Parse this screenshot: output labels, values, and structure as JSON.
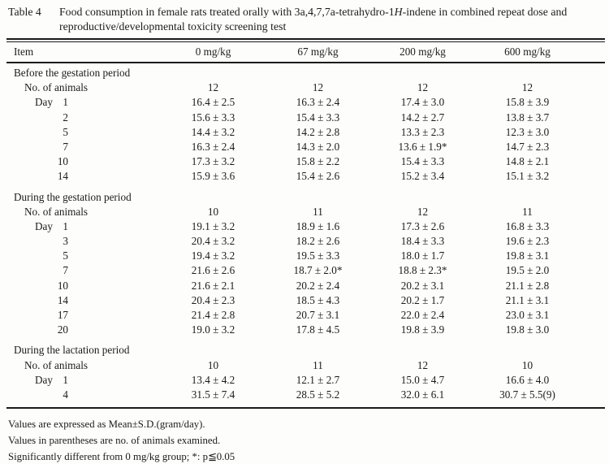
{
  "title": {
    "label": "Table 4",
    "caption_pre": "Food consumption in female rats treated orally with 3a,4,7,7a-tetrahydro-1",
    "caption_italic": "H",
    "caption_post": "-indene in combined repeat dose and reproductive/developmental toxicity screening test"
  },
  "table": {
    "item_header": "Item",
    "dose_headers": [
      "0 mg/kg",
      "67 mg/kg",
      "200 mg/kg",
      "600 mg/kg"
    ],
    "animals_label": "No. of animals",
    "day_label": "Day",
    "sections": [
      {
        "label": "Before the gestation period",
        "animals": [
          "12",
          "12",
          "12",
          "12"
        ],
        "rows": [
          {
            "day": "1",
            "values": [
              "16.4 ± 2.5",
              "16.3 ± 2.4",
              "17.4 ± 3.0",
              "15.8 ± 3.9"
            ]
          },
          {
            "day": "2",
            "values": [
              "15.6 ± 3.3",
              "15.4 ± 3.3",
              "14.2 ± 2.7",
              "13.8 ± 3.7"
            ]
          },
          {
            "day": "5",
            "values": [
              "14.4 ± 3.2",
              "14.2 ± 2.8",
              "13.3 ± 2.3",
              "12.3 ± 3.0"
            ]
          },
          {
            "day": "7",
            "values": [
              "16.3 ± 2.4",
              "14.3 ± 2.0",
              "13.6 ± 1.9*",
              "14.7 ± 2.3"
            ]
          },
          {
            "day": "10",
            "values": [
              "17.3 ± 3.2",
              "15.8 ± 2.2",
              "15.4 ± 3.3",
              "14.8 ± 2.1"
            ]
          },
          {
            "day": "14",
            "values": [
              "15.9 ± 3.6",
              "15.4 ± 2.6",
              "15.2 ± 3.4",
              "15.1 ± 3.2"
            ]
          }
        ]
      },
      {
        "label": "During the gestation period",
        "animals": [
          "10",
          "11",
          "12",
          "11"
        ],
        "rows": [
          {
            "day": "1",
            "values": [
              "19.1 ± 3.2",
              "18.9 ± 1.6",
              "17.3 ± 2.6",
              "16.8 ± 3.3"
            ]
          },
          {
            "day": "3",
            "values": [
              "20.4 ± 3.2",
              "18.2 ± 2.6",
              "18.4 ± 3.3",
              "19.6 ± 2.3"
            ]
          },
          {
            "day": "5",
            "values": [
              "19.4 ± 3.2",
              "19.5 ± 3.3",
              "18.0 ± 1.7",
              "19.8 ± 3.1"
            ]
          },
          {
            "day": "7",
            "values": [
              "21.6 ± 2.6",
              "18.7 ± 2.0*",
              "18.8 ± 2.3*",
              "19.5 ± 2.0"
            ]
          },
          {
            "day": "10",
            "values": [
              "21.6 ± 2.1",
              "20.2 ± 2.4",
              "20.2 ± 3.1",
              "21.1 ± 2.8"
            ]
          },
          {
            "day": "14",
            "values": [
              "20.4 ± 2.3",
              "18.5 ± 4.3",
              "20.2 ± 1.7",
              "21.1 ± 3.1"
            ]
          },
          {
            "day": "17",
            "values": [
              "21.4 ± 2.8",
              "20.7 ± 3.1",
              "22.0 ± 2.4",
              "23.0 ± 3.1"
            ]
          },
          {
            "day": "20",
            "values": [
              "19.0 ± 3.2",
              "17.8 ± 4.5",
              "19.8 ± 3.9",
              "19.8 ± 3.0"
            ]
          }
        ]
      },
      {
        "label": "During the lactation period",
        "animals": [
          "10",
          "11",
          "12",
          "10"
        ],
        "rows": [
          {
            "day": "1",
            "values": [
              "13.4 ± 4.2",
              "12.1 ± 2.7",
              "15.0 ± 4.7",
              "16.6 ± 4.0"
            ]
          },
          {
            "day": "4",
            "values": [
              "31.5 ± 7.4",
              "28.5 ± 5.2",
              "32.0 ± 6.1",
              "30.7 ± 5.5(9)"
            ]
          }
        ]
      }
    ]
  },
  "footnotes": [
    "Values are expressed as Mean±S.D.(gram/day).",
    "Values in parentheses are no. of animals examined.",
    "Significantly different from 0 mg/kg group; *: p≦0.05"
  ]
}
